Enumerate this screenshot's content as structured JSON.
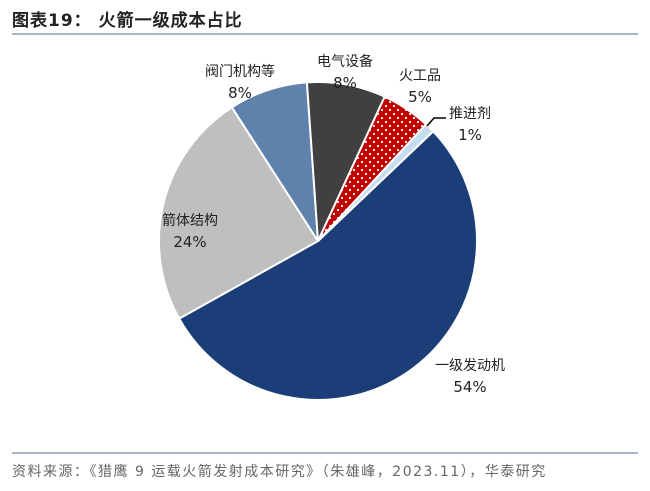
{
  "header": {
    "title": "图表19：  火箭一级成本占比"
  },
  "footer": {
    "source": "资料来源：《猎鹰 9 运载火箭发射成本研究》（朱雄峰，2023.11），华泰研究"
  },
  "chart_data": {
    "type": "pie",
    "title": "火箭一级成本占比",
    "slices": [
      {
        "label": "一级发动机",
        "value": 54,
        "display": "54%",
        "color": "#1b3d78"
      },
      {
        "label": "箭体结构",
        "value": 24,
        "display": "24%",
        "color": "#bfbfbf"
      },
      {
        "label": "阀门机构等",
        "value": 8,
        "display": "8%",
        "color": "#5f82ad"
      },
      {
        "label": "电气设备",
        "value": 8,
        "display": "8%",
        "color": "#404040"
      },
      {
        "label": "火工品",
        "value": 5,
        "display": "5%",
        "color": "#c00000",
        "pattern": "white-dots"
      },
      {
        "label": "推进剂",
        "value": 1,
        "display": "1%",
        "color": "#c6dcef"
      }
    ]
  }
}
